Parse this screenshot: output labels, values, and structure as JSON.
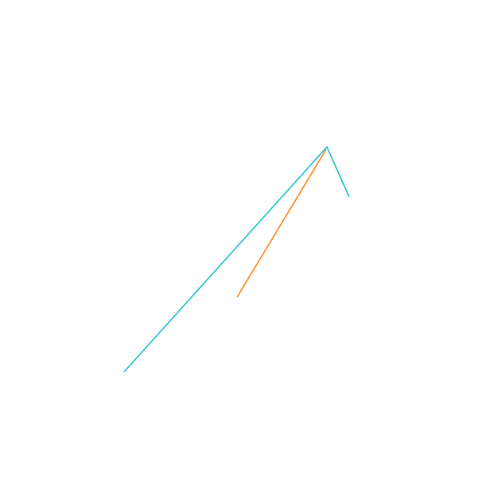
{
  "diagram": {
    "background_color": "#ffffff",
    "lines": [
      {
        "name": "cyan-polyline",
        "color": "#17becf",
        "segments": 2
      },
      {
        "name": "orange-line",
        "color": "#ff7f0e",
        "segments": 1
      }
    ]
  }
}
